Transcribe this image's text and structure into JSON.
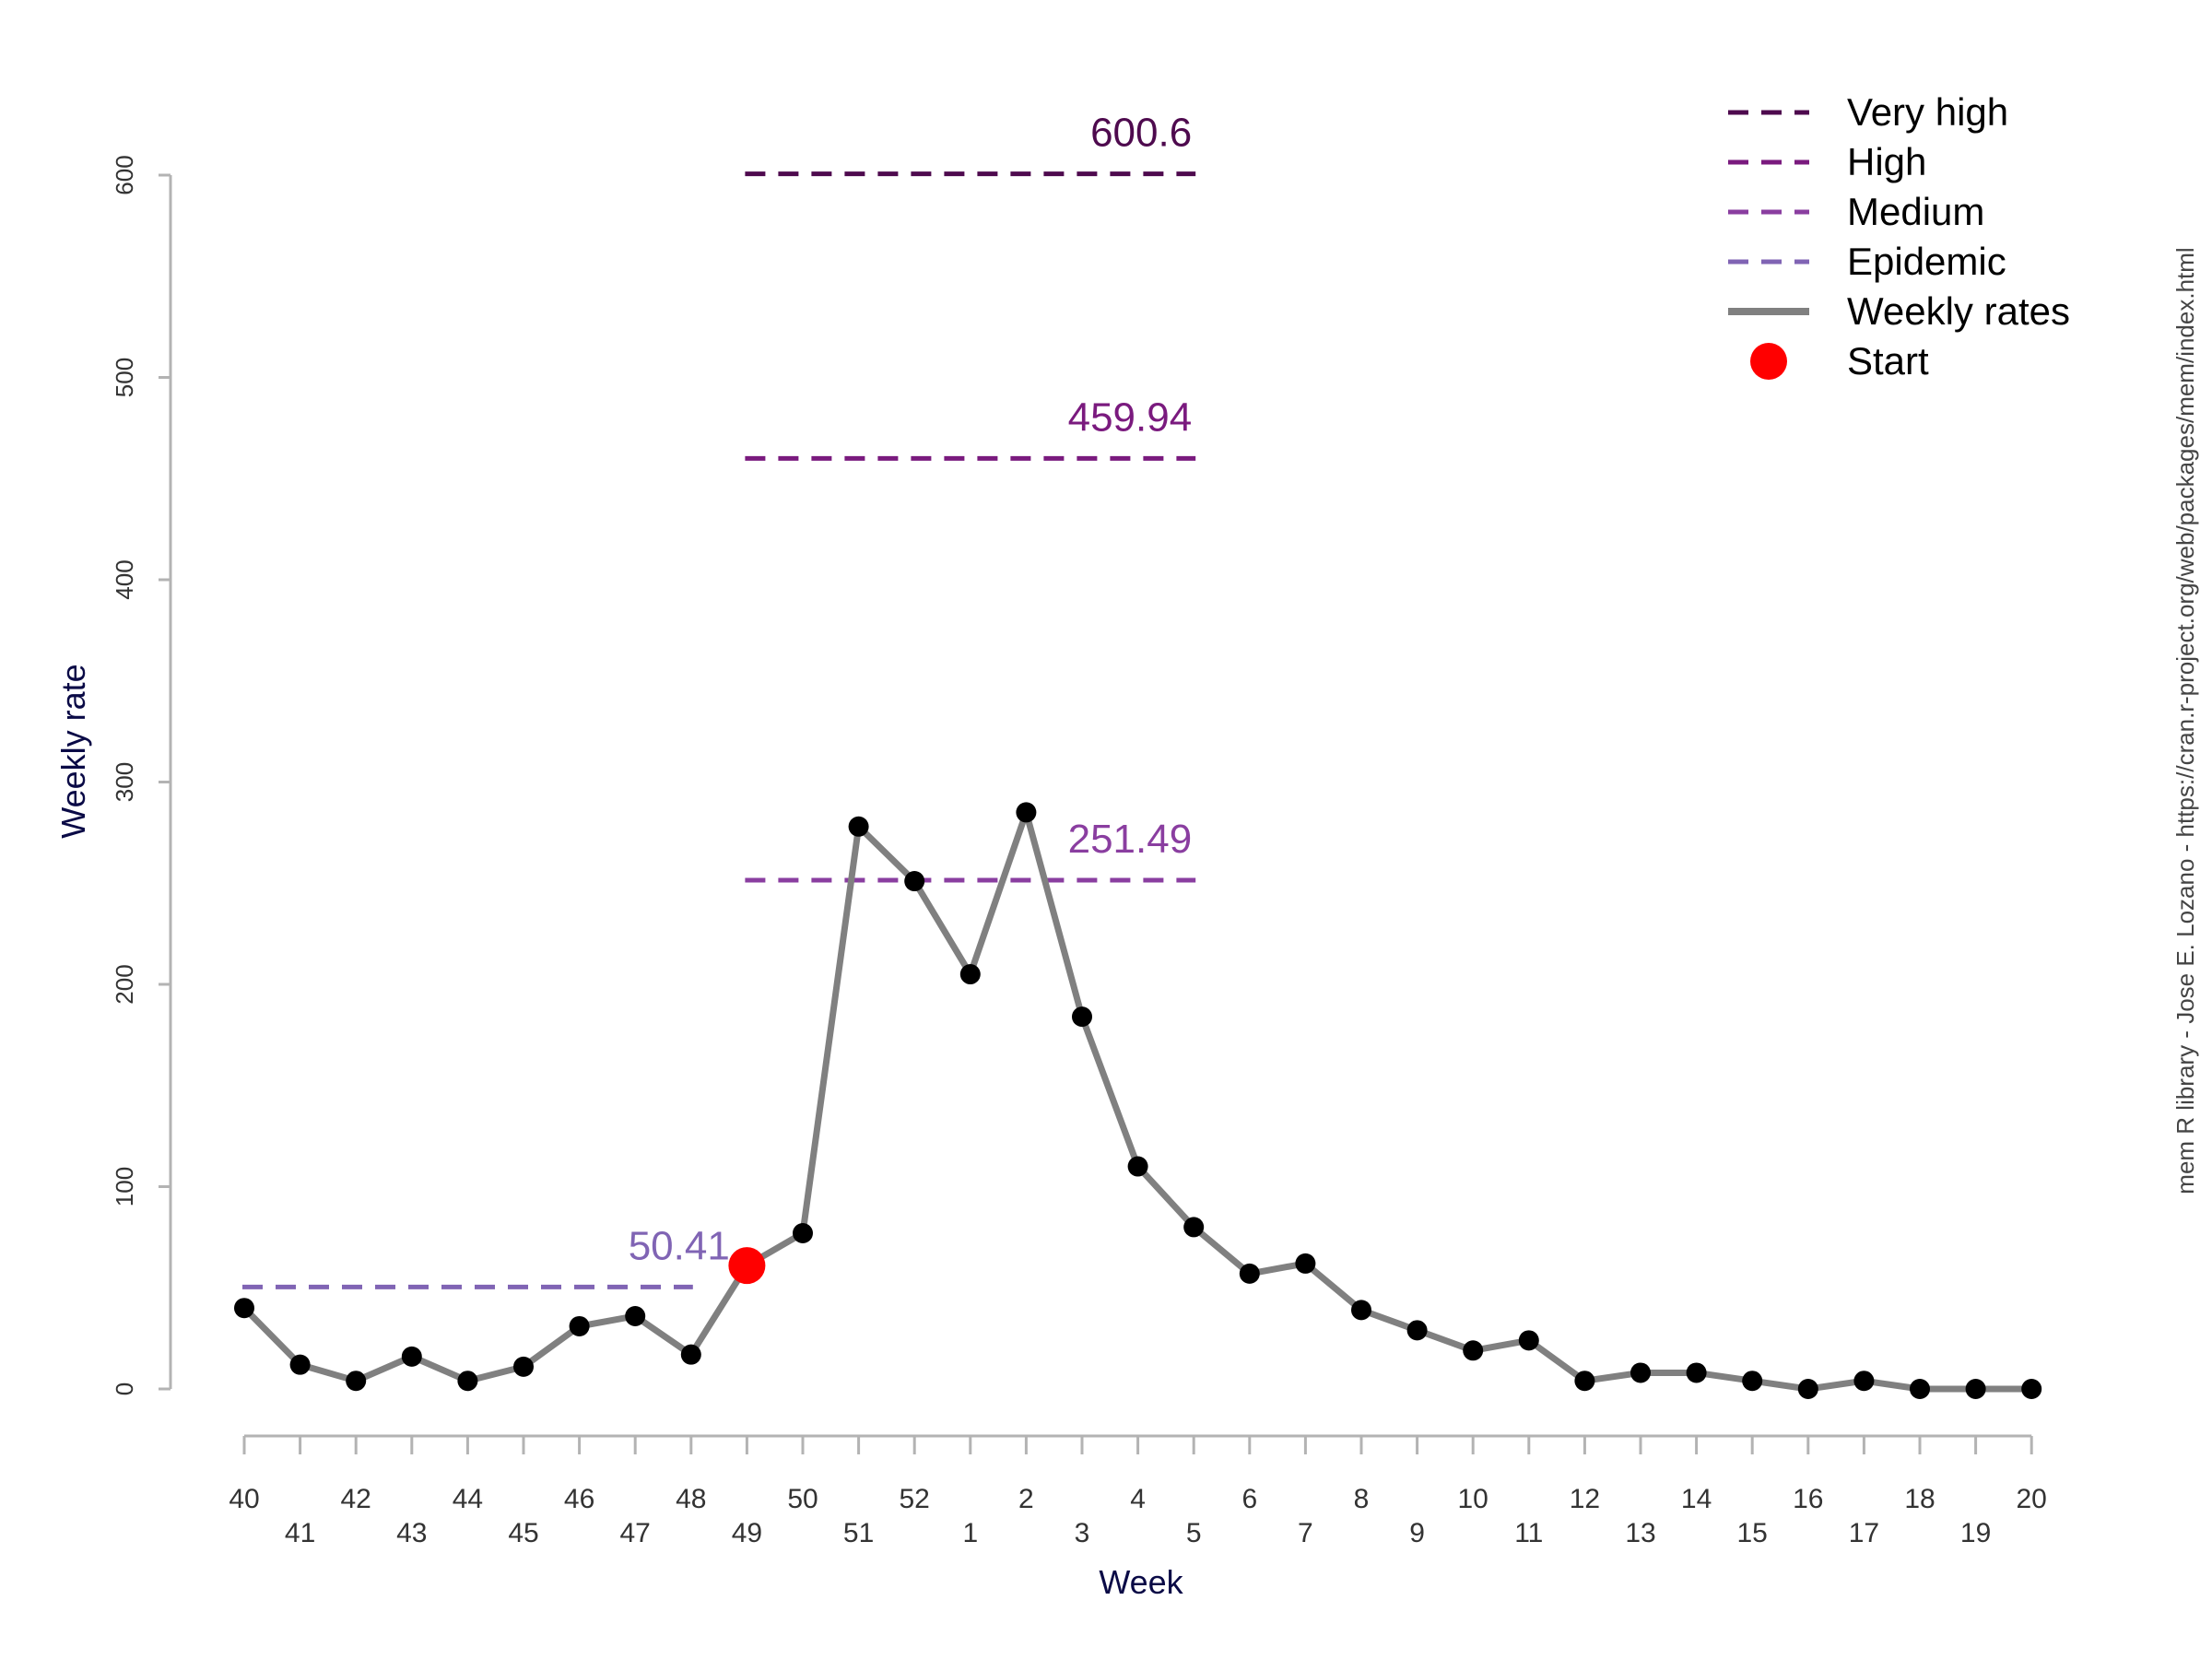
{
  "chart_data": {
    "type": "line",
    "xlabel": "Week",
    "ylabel": "Weekly rate",
    "ylim": [
      0,
      600
    ],
    "yticks": [
      0,
      100,
      200,
      300,
      400,
      500,
      600
    ],
    "categories": [
      "40",
      "41",
      "42",
      "43",
      "44",
      "45",
      "46",
      "47",
      "48",
      "49",
      "50",
      "51",
      "52",
      "1",
      "2",
      "3",
      "4",
      "5",
      "6",
      "7",
      "8",
      "9",
      "10",
      "11",
      "12",
      "13",
      "14",
      "15",
      "16",
      "17",
      "18",
      "19",
      "20"
    ],
    "series": [
      {
        "name": "Weekly rates",
        "color": "#808080",
        "values": [
          40,
          12,
          4,
          16,
          4,
          11,
          31,
          36,
          17,
          61,
          77,
          278,
          251,
          205,
          285,
          184,
          110,
          80,
          57,
          62,
          39,
          29,
          19,
          24,
          4,
          8,
          8,
          4,
          0,
          4,
          0,
          0,
          0
        ]
      }
    ],
    "start": {
      "name": "Start",
      "category": "49",
      "value": 61,
      "color": "#ff0000"
    },
    "thresholds": [
      {
        "name": "Epidemic",
        "value": 50.41,
        "label": "50.41",
        "color": "#8064b4",
        "from": "40",
        "to": "48"
      },
      {
        "name": "Medium",
        "value": 251.49,
        "label": "251.49",
        "color": "#8a3ea0",
        "from": "49",
        "to": "5"
      },
      {
        "name": "High",
        "value": 459.94,
        "label": "459.94",
        "color": "#7a1a7e",
        "from": "49",
        "to": "5"
      },
      {
        "name": "Very high",
        "value": 600.6,
        "label": "600.6",
        "color": "#4e0a4e",
        "from": "49",
        "to": "5"
      }
    ],
    "legend": {
      "position": "top-right",
      "entries": [
        {
          "label": "Very high",
          "style": "dash",
          "color": "#4e0a4e"
        },
        {
          "label": "High",
          "style": "dash",
          "color": "#7a1a7e"
        },
        {
          "label": "Medium",
          "style": "dash",
          "color": "#8a3ea0"
        },
        {
          "label": "Epidemic",
          "style": "dash",
          "color": "#8064b4"
        },
        {
          "label": "Weekly rates",
          "style": "line",
          "color": "#808080"
        },
        {
          "label": "Start",
          "style": "dot",
          "color": "#ff0000"
        }
      ]
    },
    "credit": "mem R library - Jose E. Lozano - https://cran.r-project.org/web/packages/mem/index.html",
    "grid": false
  }
}
